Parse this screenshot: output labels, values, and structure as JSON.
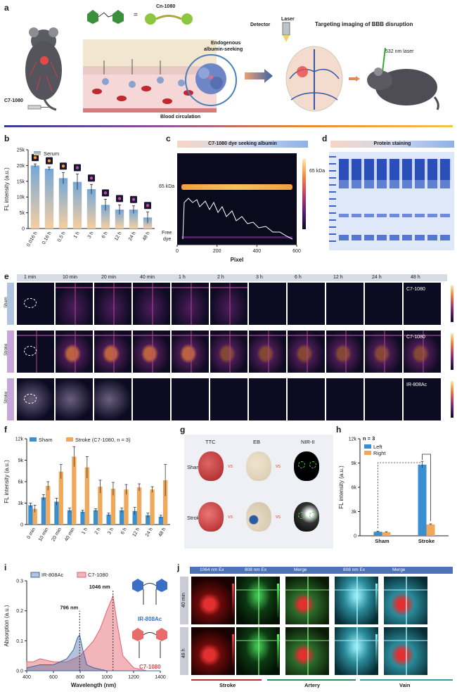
{
  "panel_labels": {
    "a": "a",
    "b": "b",
    "c": "c",
    "d": "d",
    "e": "e",
    "f": "f",
    "g": "g",
    "h": "h",
    "i": "i",
    "j": "j"
  },
  "panel_a": {
    "compound_c7": "C7-1080",
    "compound_cn": "Cn-1080",
    "equals": "=",
    "endogenous": "Endogenous",
    "albumin_seeking": "albumin-seeking",
    "blood_circulation": "Blood circulation",
    "detector": "Detector",
    "laser": "Laser",
    "targeting": "Targeting imaging of BBB disruption",
    "laser_532": "532 nm laser"
  },
  "panel_c": {
    "title": "C7-1080 dye seeking albumin",
    "band": "65 kDa",
    "free_dye_1": "Free",
    "free_dye_2": "dye",
    "cbar_label": "65 kDa",
    "xlabel": "Pixel",
    "xticks": [
      "0",
      "200",
      "400",
      "600"
    ]
  },
  "panel_d": {
    "title": "Protein staining"
  },
  "panel_e": {
    "times": [
      "1 min",
      "10 min",
      "20 min",
      "40 min",
      "1 h",
      "2 h",
      "3 h",
      "6 h",
      "12 h",
      "24 h",
      "48 h"
    ],
    "rows": [
      {
        "group": "Sham",
        "dye": "C7-1080"
      },
      {
        "group": "Stroke",
        "dye": "C7-1080"
      },
      {
        "group": "Stroke",
        "dye": "IR-808Ac"
      }
    ]
  },
  "panel_g": {
    "cols": [
      "TTC",
      "EB",
      "NIR-II"
    ],
    "rows": [
      "Sham",
      "Stroke"
    ],
    "vs": "vs"
  },
  "panel_j": {
    "headers": [
      "1064  nm Ex",
      "808 nm Ex",
      "Merge",
      "808 nm Ex",
      "Merge"
    ],
    "rows": [
      "40 min",
      "48 h"
    ],
    "footers": [
      "Stroke",
      "Artery",
      "Vain"
    ]
  },
  "chart_data": [
    {
      "id": "b",
      "type": "bar",
      "legend": [
        "Serum"
      ],
      "ylabel": "FL intensity (a.u.)",
      "ylim": [
        0,
        25000
      ],
      "yticks": [
        "0",
        "5k",
        "10k",
        "15k",
        "20k",
        "25k"
      ],
      "categories": [
        "0.016 h",
        "0.16 h",
        "0.5 h",
        "1 h",
        "3 h",
        "6 h",
        "12 h",
        "24 h",
        "48 h"
      ],
      "values": [
        20000,
        19000,
        16000,
        14800,
        12500,
        7500,
        6000,
        6000,
        3500
      ],
      "errors": [
        500,
        500,
        1800,
        2500,
        1500,
        1800,
        1500,
        1200,
        1800
      ]
    },
    {
      "id": "f",
      "type": "bar",
      "series": [
        {
          "name": "Sham",
          "values": [
            2700,
            3800,
            3200,
            2000,
            1800,
            2000,
            1400,
            2000,
            1900,
            1300,
            1100
          ],
          "errors": [
            300,
            400,
            500,
            300,
            200,
            200,
            200,
            300,
            500,
            300,
            200
          ],
          "color": "#3a8fd1"
        },
        {
          "name": "Stroke (C7-1080, n = 3)",
          "values": [
            2200,
            5400,
            7400,
            9500,
            8000,
            5300,
            5000,
            4900,
            5200,
            4900,
            6200
          ],
          "errors": [
            500,
            600,
            1000,
            1400,
            1500,
            900,
            900,
            700,
            500,
            400,
            2200
          ],
          "color": "#f0a85a"
        }
      ],
      "ylabel": "FL intensity (a.u.)",
      "ylim": [
        0,
        12000
      ],
      "yticks": [
        "0",
        "3k",
        "6k",
        "9k",
        "12k"
      ],
      "categories": [
        "0 min",
        "10 min",
        "20 min",
        "40 min",
        "1 h",
        "2 h",
        "3 h",
        "6 h",
        "12 h",
        "24 h",
        "48 h"
      ]
    },
    {
      "id": "h",
      "type": "bar",
      "note": "n = 3",
      "series": [
        {
          "name": "Left",
          "values": [
            500,
            8800
          ],
          "errors": [
            80,
            400
          ],
          "color": "#3a8fd1"
        },
        {
          "name": "Right",
          "values": [
            450,
            1400
          ],
          "errors": [
            60,
            80
          ],
          "color": "#f0a85a"
        }
      ],
      "ylabel": "FL intensity (a.u.)",
      "ylim": [
        0,
        12000
      ],
      "yticks": [
        "0",
        "3k",
        "6k",
        "9k",
        "12k"
      ],
      "categories": [
        "Sham",
        "Stroke"
      ]
    },
    {
      "id": "i",
      "type": "line",
      "series": [
        {
          "name": "IR-808Ac",
          "color": "#3b66a8",
          "x": [
            400,
            500,
            600,
            700,
            750,
            780,
            796,
            820,
            850,
            900,
            1000,
            1100,
            1200,
            1300,
            1400
          ],
          "y": [
            0.01,
            0.02,
            0.02,
            0.04,
            0.07,
            0.11,
            0.12,
            0.07,
            0.02,
            0.01,
            0.0,
            0.0,
            0.0,
            0.0,
            0.0
          ]
        },
        {
          "name": "C7-1080",
          "color": "#e4606d",
          "x": [
            400,
            450,
            500,
            550,
            600,
            700,
            800,
            900,
            950,
            1000,
            1046,
            1080,
            1120,
            1200,
            1300,
            1400
          ],
          "y": [
            0.03,
            0.03,
            0.04,
            0.035,
            0.03,
            0.03,
            0.05,
            0.1,
            0.14,
            0.2,
            0.25,
            0.15,
            0.05,
            0.01,
            0.0,
            0.0
          ]
        }
      ],
      "annotations": [
        "796 nm",
        "1046 nm"
      ],
      "xlabel": "Wavelength (nm)",
      "ylabel": "Absorption (a.u.)",
      "xlim": [
        400,
        1400
      ],
      "ylim": [
        0,
        0.3
      ],
      "xticks": [
        "400",
        "600",
        "800",
        "1000",
        "1200",
        "1400"
      ],
      "yticks": [
        "0.0",
        "0.1",
        "0.2",
        "0.3"
      ]
    }
  ]
}
